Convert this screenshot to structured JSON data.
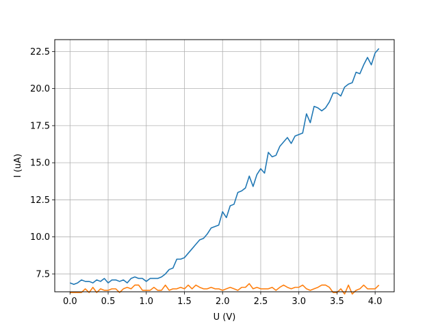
{
  "chart_data": {
    "type": "line",
    "title": "",
    "xlabel": "U (V)",
    "ylabel": "I (uA)",
    "xlim": [
      -0.2,
      4.25
    ],
    "ylim": [
      6.3,
      23.3
    ],
    "xticks": [
      0.0,
      0.5,
      1.0,
      1.5,
      2.0,
      2.5,
      3.0,
      3.5,
      4.0
    ],
    "xtick_labels": [
      "0.0",
      "0.5",
      "1.0",
      "1.5",
      "2.0",
      "2.5",
      "3.0",
      "3.5",
      "4.0"
    ],
    "yticks": [
      7.5,
      10.0,
      12.5,
      15.0,
      17.5,
      20.0,
      22.5
    ],
    "ytick_labels": [
      "7.5",
      "10.0",
      "12.5",
      "15.0",
      "17.5",
      "20.0",
      "22.5"
    ],
    "grid": true,
    "series": [
      {
        "color": "#1f77b4",
        "points": [
          [
            0.0,
            6.9
          ],
          [
            0.05,
            6.8
          ],
          [
            0.1,
            6.9
          ],
          [
            0.15,
            7.1
          ],
          [
            0.2,
            7.0
          ],
          [
            0.25,
            7.0
          ],
          [
            0.3,
            6.9
          ],
          [
            0.35,
            7.1
          ],
          [
            0.4,
            7.0
          ],
          [
            0.45,
            7.2
          ],
          [
            0.5,
            6.9
          ],
          [
            0.55,
            7.1
          ],
          [
            0.6,
            7.1
          ],
          [
            0.65,
            7.0
          ],
          [
            0.7,
            7.1
          ],
          [
            0.75,
            6.9
          ],
          [
            0.8,
            7.2
          ],
          [
            0.85,
            7.3
          ],
          [
            0.9,
            7.2
          ],
          [
            0.95,
            7.2
          ],
          [
            1.0,
            7.0
          ],
          [
            1.05,
            7.2
          ],
          [
            1.1,
            7.2
          ],
          [
            1.15,
            7.2
          ],
          [
            1.2,
            7.3
          ],
          [
            1.25,
            7.5
          ],
          [
            1.3,
            7.8
          ],
          [
            1.35,
            7.9
          ],
          [
            1.4,
            8.5
          ],
          [
            1.45,
            8.5
          ],
          [
            1.5,
            8.6
          ],
          [
            1.55,
            8.9
          ],
          [
            1.6,
            9.2
          ],
          [
            1.65,
            9.5
          ],
          [
            1.7,
            9.8
          ],
          [
            1.75,
            9.9
          ],
          [
            1.8,
            10.2
          ],
          [
            1.85,
            10.6
          ],
          [
            1.9,
            10.7
          ],
          [
            1.95,
            10.8
          ],
          [
            2.0,
            11.7
          ],
          [
            2.05,
            11.3
          ],
          [
            2.1,
            12.1
          ],
          [
            2.15,
            12.2
          ],
          [
            2.2,
            13.0
          ],
          [
            2.25,
            13.1
          ],
          [
            2.3,
            13.3
          ],
          [
            2.35,
            14.1
          ],
          [
            2.4,
            13.4
          ],
          [
            2.45,
            14.2
          ],
          [
            2.5,
            14.6
          ],
          [
            2.55,
            14.3
          ],
          [
            2.6,
            15.7
          ],
          [
            2.65,
            15.4
          ],
          [
            2.7,
            15.5
          ],
          [
            2.75,
            16.1
          ],
          [
            2.8,
            16.4
          ],
          [
            2.85,
            16.7
          ],
          [
            2.9,
            16.3
          ],
          [
            2.95,
            16.8
          ],
          [
            3.0,
            16.9
          ],
          [
            3.05,
            17.0
          ],
          [
            3.1,
            18.3
          ],
          [
            3.15,
            17.7
          ],
          [
            3.2,
            18.8
          ],
          [
            3.25,
            18.7
          ],
          [
            3.3,
            18.5
          ],
          [
            3.35,
            18.7
          ],
          [
            3.4,
            19.1
          ],
          [
            3.45,
            19.7
          ],
          [
            3.5,
            19.7
          ],
          [
            3.55,
            19.5
          ],
          [
            3.6,
            20.1
          ],
          [
            3.65,
            20.3
          ],
          [
            3.7,
            20.4
          ],
          [
            3.75,
            21.1
          ],
          [
            3.8,
            21.0
          ],
          [
            3.85,
            21.6
          ],
          [
            3.9,
            22.1
          ],
          [
            3.95,
            21.6
          ],
          [
            4.0,
            22.4
          ],
          [
            4.05,
            22.7
          ]
        ]
      },
      {
        "color": "#ff7f0e",
        "points": [
          [
            0.0,
            6.25
          ],
          [
            0.05,
            6.25
          ],
          [
            0.1,
            6.25
          ],
          [
            0.15,
            6.25
          ],
          [
            0.2,
            6.5
          ],
          [
            0.25,
            6.25
          ],
          [
            0.3,
            6.6
          ],
          [
            0.35,
            6.25
          ],
          [
            0.4,
            6.5
          ],
          [
            0.45,
            6.4
          ],
          [
            0.5,
            6.4
          ],
          [
            0.55,
            6.5
          ],
          [
            0.6,
            6.5
          ],
          [
            0.65,
            6.25
          ],
          [
            0.7,
            6.5
          ],
          [
            0.75,
            6.6
          ],
          [
            0.8,
            6.5
          ],
          [
            0.85,
            6.75
          ],
          [
            0.9,
            6.75
          ],
          [
            0.95,
            6.4
          ],
          [
            1.0,
            6.4
          ],
          [
            1.05,
            6.4
          ],
          [
            1.1,
            6.6
          ],
          [
            1.15,
            6.4
          ],
          [
            1.2,
            6.4
          ],
          [
            1.25,
            6.75
          ],
          [
            1.3,
            6.4
          ],
          [
            1.35,
            6.5
          ],
          [
            1.4,
            6.5
          ],
          [
            1.45,
            6.6
          ],
          [
            1.5,
            6.5
          ],
          [
            1.55,
            6.75
          ],
          [
            1.6,
            6.5
          ],
          [
            1.65,
            6.75
          ],
          [
            1.7,
            6.6
          ],
          [
            1.75,
            6.5
          ],
          [
            1.8,
            6.5
          ],
          [
            1.85,
            6.6
          ],
          [
            1.9,
            6.5
          ],
          [
            1.95,
            6.5
          ],
          [
            2.0,
            6.4
          ],
          [
            2.05,
            6.5
          ],
          [
            2.1,
            6.6
          ],
          [
            2.15,
            6.5
          ],
          [
            2.2,
            6.4
          ],
          [
            2.25,
            6.6
          ],
          [
            2.3,
            6.6
          ],
          [
            2.35,
            6.85
          ],
          [
            2.4,
            6.5
          ],
          [
            2.45,
            6.6
          ],
          [
            2.5,
            6.5
          ],
          [
            2.55,
            6.5
          ],
          [
            2.6,
            6.5
          ],
          [
            2.65,
            6.6
          ],
          [
            2.7,
            6.4
          ],
          [
            2.75,
            6.6
          ],
          [
            2.8,
            6.75
          ],
          [
            2.85,
            6.6
          ],
          [
            2.9,
            6.5
          ],
          [
            2.95,
            6.6
          ],
          [
            3.0,
            6.6
          ],
          [
            3.05,
            6.75
          ],
          [
            3.1,
            6.5
          ],
          [
            3.15,
            6.4
          ],
          [
            3.2,
            6.5
          ],
          [
            3.25,
            6.6
          ],
          [
            3.3,
            6.75
          ],
          [
            3.35,
            6.75
          ],
          [
            3.4,
            6.6
          ],
          [
            3.45,
            6.25
          ],
          [
            3.5,
            6.25
          ],
          [
            3.55,
            6.5
          ],
          [
            3.6,
            6.15
          ],
          [
            3.65,
            6.75
          ],
          [
            3.7,
            6.15
          ],
          [
            3.75,
            6.4
          ],
          [
            3.8,
            6.5
          ],
          [
            3.85,
            6.75
          ],
          [
            3.9,
            6.5
          ],
          [
            3.95,
            6.5
          ],
          [
            4.0,
            6.5
          ],
          [
            4.05,
            6.75
          ]
        ]
      }
    ]
  }
}
